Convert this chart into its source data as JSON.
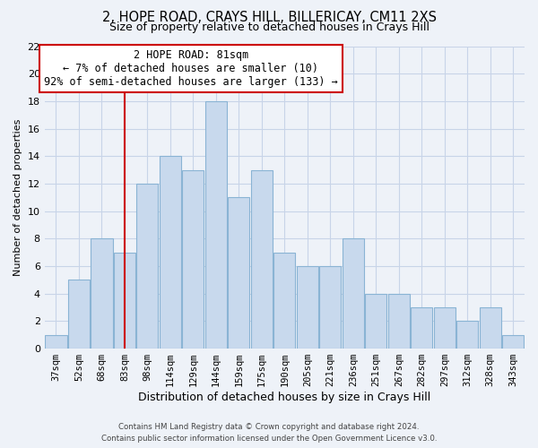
{
  "title": "2, HOPE ROAD, CRAYS HILL, BILLERICAY, CM11 2XS",
  "subtitle": "Size of property relative to detached houses in Crays Hill",
  "xlabel": "Distribution of detached houses by size in Crays Hill",
  "ylabel": "Number of detached properties",
  "bar_color": "#c8d9ed",
  "bar_edgecolor": "#8ab4d4",
  "grid_color": "#c8d4e8",
  "bg_color": "#eef2f8",
  "categories": [
    "37sqm",
    "52sqm",
    "68sqm",
    "83sqm",
    "98sqm",
    "114sqm",
    "129sqm",
    "144sqm",
    "159sqm",
    "175sqm",
    "190sqm",
    "205sqm",
    "221sqm",
    "236sqm",
    "251sqm",
    "267sqm",
    "282sqm",
    "297sqm",
    "312sqm",
    "328sqm",
    "343sqm"
  ],
  "values": [
    1,
    5,
    8,
    7,
    12,
    14,
    13,
    18,
    11,
    13,
    7,
    6,
    6,
    8,
    4,
    4,
    3,
    3,
    2,
    3,
    1
  ],
  "ylim": [
    0,
    22
  ],
  "yticks": [
    0,
    2,
    4,
    6,
    8,
    10,
    12,
    14,
    16,
    18,
    20,
    22
  ],
  "vline_x": 3,
  "vline_color": "#cc0000",
  "annotation_title": "2 HOPE ROAD: 81sqm",
  "annotation_line1": "← 7% of detached houses are smaller (10)",
  "annotation_line2": "92% of semi-detached houses are larger (133) →",
  "annotation_box_color": "#ffffff",
  "annotation_box_edgecolor": "#cc0000",
  "footer1": "Contains HM Land Registry data © Crown copyright and database right 2024.",
  "footer2": "Contains public sector information licensed under the Open Government Licence v3.0."
}
